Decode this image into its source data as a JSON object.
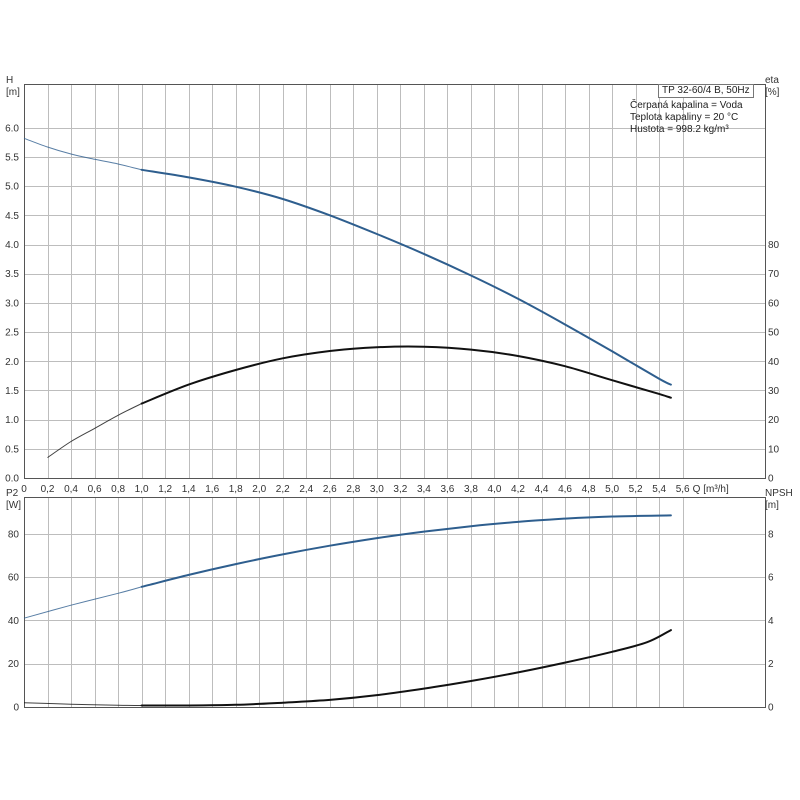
{
  "info": {
    "title": "TP 32-60/4 B, 50Hz",
    "fluid": "Čerpaná kapalina = Voda",
    "temp": "Teplota kapaliny = 20 °C",
    "density": "Hustota = 998.2 kg/m³"
  },
  "chart_data": [
    {
      "type": "line",
      "xlabel": "Q [m³/h]",
      "ylabel_left": "H [m]",
      "ylabel_right": "eta [%]",
      "x_ticks": [
        "0",
        "0,2",
        "0,4",
        "0,6",
        "0,8",
        "1,0",
        "1,2",
        "1,4",
        "1,6",
        "1,8",
        "2,0",
        "2,2",
        "2,4",
        "2,6",
        "2,8",
        "3,0",
        "3,2",
        "3,4",
        "3,6",
        "3,8",
        "4,0",
        "4,2",
        "4,4",
        "4,6",
        "4,8",
        "5,0",
        "5,2",
        "5,4",
        "5,6"
      ],
      "y_left_ticks": [
        "0.0",
        "0.5",
        "1.0",
        "1.5",
        "2.0",
        "2.5",
        "3.0",
        "3.5",
        "4.0",
        "4.5",
        "5.0",
        "5.5",
        "6.0"
      ],
      "y_right_ticks": [
        "0",
        "10",
        "20",
        "30",
        "40",
        "50",
        "60",
        "70",
        "80"
      ],
      "xlim": [
        0,
        6.3
      ],
      "ylim_left": [
        0,
        6.75
      ],
      "ylim_right": [
        0,
        135
      ],
      "series": [
        {
          "name": "H",
          "axis": "left",
          "color": "#2e5e8e",
          "x": [
            0,
            0.2,
            0.4,
            0.6,
            0.8,
            1.0,
            1.4,
            1.8,
            2.2,
            2.6,
            3.0,
            3.4,
            3.8,
            4.2,
            4.6,
            5.0,
            5.4,
            5.5
          ],
          "y": [
            5.82,
            5.67,
            5.55,
            5.46,
            5.38,
            5.28,
            5.15,
            4.99,
            4.78,
            4.5,
            4.18,
            3.84,
            3.47,
            3.07,
            2.63,
            2.17,
            1.7,
            1.6
          ]
        },
        {
          "name": "eta",
          "axis": "right",
          "color": "#111111",
          "x": [
            0.2,
            0.4,
            0.6,
            0.8,
            1.0,
            1.4,
            1.8,
            2.2,
            2.6,
            3.0,
            3.4,
            3.8,
            4.2,
            4.6,
            5.0,
            5.4,
            5.5
          ],
          "y": [
            7,
            12.5,
            17,
            21.5,
            25.5,
            32,
            37,
            41,
            43.5,
            44.8,
            45,
            44,
            41.8,
            38.3,
            33.5,
            28.8,
            27.5
          ]
        }
      ]
    },
    {
      "type": "line",
      "ylabel_left": "P2 [W]",
      "ylabel_right": "NPSH [m]",
      "x_ticks": [
        "0",
        "0,2",
        "0,4",
        "0,6",
        "0,8",
        "1,0",
        "1,2",
        "1,4",
        "1,6",
        "1,8",
        "2,0",
        "2,2",
        "2,4",
        "2,6",
        "2,8",
        "3,0",
        "3,2",
        "3,4",
        "3,6",
        "3,8",
        "4,0",
        "4,2",
        "4,4",
        "4,6",
        "4,8",
        "5,0",
        "5,2",
        "5,4",
        "5,6"
      ],
      "y_left_ticks": [
        "0",
        "20",
        "40",
        "60",
        "80"
      ],
      "y_right_ticks": [
        "0",
        "2",
        "4",
        "6",
        "8"
      ],
      "xlim": [
        0,
        6.3
      ],
      "ylim_left": [
        0,
        97
      ],
      "ylim_right": [
        0,
        9.7
      ],
      "series": [
        {
          "name": "P2",
          "axis": "left",
          "color": "#2e5e8e",
          "x": [
            0,
            0.4,
            0.8,
            1.0,
            1.4,
            1.8,
            2.2,
            2.6,
            3.0,
            3.4,
            3.8,
            4.2,
            4.6,
            5.0,
            5.5
          ],
          "y": [
            41,
            47,
            52.5,
            55.5,
            61,
            66,
            70.5,
            74.5,
            78,
            81,
            83.5,
            85.5,
            87,
            88,
            88.5
          ]
        },
        {
          "name": "NPSH",
          "axis": "right",
          "color": "#111111",
          "x": [
            0,
            0.4,
            0.8,
            1.0,
            1.4,
            1.8,
            2.2,
            2.6,
            3.0,
            3.4,
            3.8,
            4.2,
            4.6,
            5.0,
            5.3,
            5.5
          ],
          "y": [
            0.2,
            0.13,
            0.08,
            0.07,
            0.07,
            0.1,
            0.2,
            0.33,
            0.55,
            0.85,
            1.2,
            1.6,
            2.05,
            2.55,
            3.0,
            3.55
          ]
        }
      ]
    }
  ]
}
